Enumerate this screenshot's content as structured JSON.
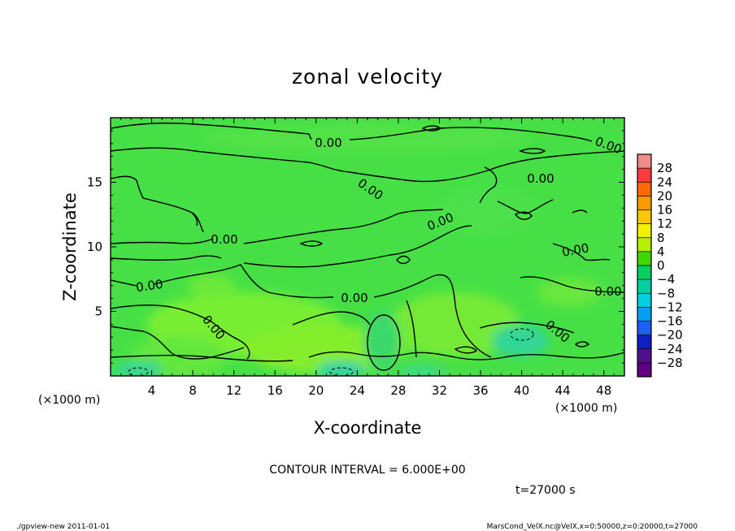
{
  "chart_data": {
    "type": "heatmap",
    "title": "zonal velocity",
    "xlabel": "X-coordinate",
    "ylabel": "Z-coordinate",
    "x_unit": "(×1000 m)",
    "y_unit": "(×1000 m)",
    "xlim": [
      0,
      50
    ],
    "ylim": [
      0,
      20
    ],
    "x_ticks": [
      "4",
      "8",
      "12",
      "16",
      "20",
      "24",
      "28",
      "32",
      "36",
      "40",
      "44",
      "48"
    ],
    "y_ticks": [
      "5",
      "10",
      "15"
    ],
    "colorbar": {
      "levels": [
        "28",
        "24",
        "20",
        "16",
        "12",
        "8",
        "4",
        "0",
        "−4",
        "−8",
        "−12",
        "−16",
        "−20",
        "−24",
        "−28"
      ],
      "colors": [
        "#f08c8c",
        "#ff3c3c",
        "#ff6a00",
        "#ff9a00",
        "#ffc800",
        "#f0f000",
        "#b4f000",
        "#3cd800",
        "#00d060",
        "#00d0a0",
        "#00d0e0",
        "#00a0f0",
        "#2060f0",
        "#1020c0",
        "#501090",
        "#600080"
      ]
    },
    "contour_labels": [
      "0.00",
      "0.00",
      "0.00",
      "0.00",
      "0.00",
      "0.00",
      "0.00",
      "0.00",
      "0.00",
      "0.00",
      "0.00",
      "0.00"
    ],
    "contour_interval": "CONTOUR INTERVAL = 6.000E+00",
    "time": "t=27000 s"
  },
  "footer": {
    "program": "./gpview-new  2011-01-01",
    "source": "MarsCond_VelX.nc@VelX,x=0:50000,z=0:20000,t=27000"
  },
  "colors": {
    "field": "#44e044",
    "contour": "#000000"
  }
}
